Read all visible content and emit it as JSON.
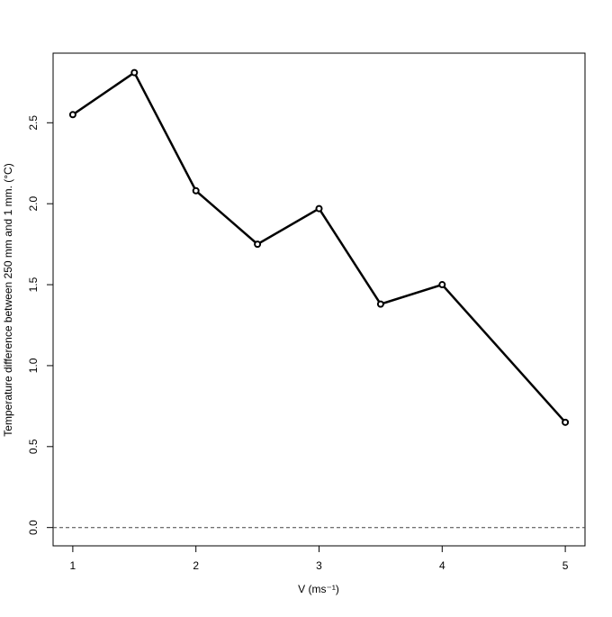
{
  "chart_data": {
    "type": "line",
    "x_label": "V (ms⁻¹)",
    "y_label": "Temperature difference between 250 mm and 1 mm. (°C)",
    "x": [
      1,
      1.5,
      2,
      2.5,
      3,
      3.5,
      4,
      5
    ],
    "series": [
      {
        "color": "#000000",
        "values": [
          2.55,
          2.81,
          2.08,
          1.75,
          1.97,
          1.38,
          1.5,
          0.65
        ]
      }
    ],
    "xlim": [
      0.84,
      5.16
    ],
    "ylim": [
      -0.113,
      2.93
    ],
    "xticks": [
      1,
      2,
      3,
      4,
      5
    ],
    "yticks": [
      {
        "value": 0,
        "label": "0.0"
      },
      {
        "value": 0.5,
        "label": "0.5"
      },
      {
        "value": 1,
        "label": "1.0"
      },
      {
        "value": 1.5,
        "label": "1.5"
      },
      {
        "value": 2,
        "label": "2.0"
      },
      {
        "value": 2.5,
        "label": "2.5"
      }
    ],
    "hline": 0
  }
}
